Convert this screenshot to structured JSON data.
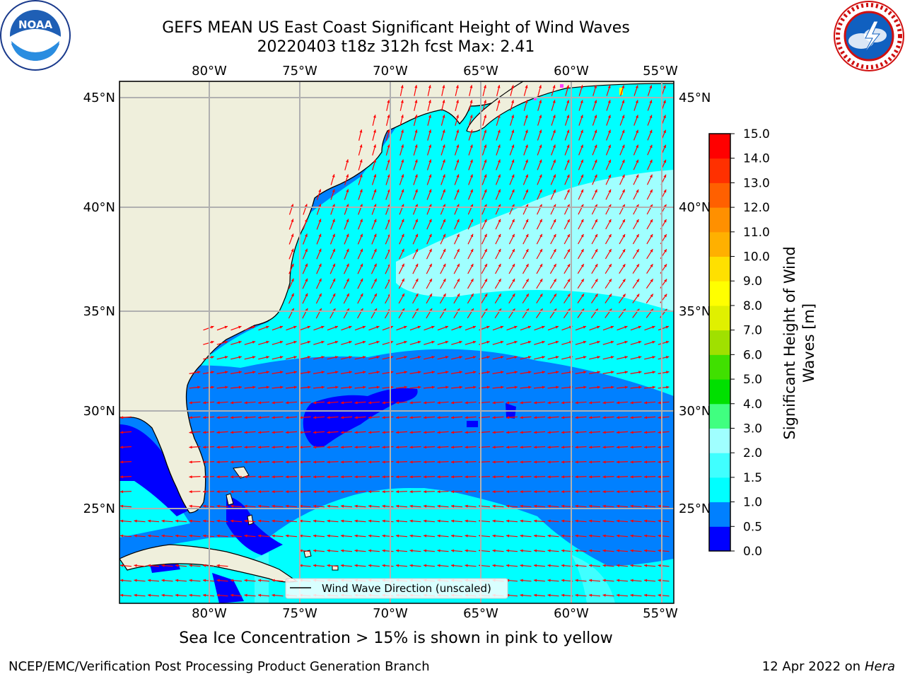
{
  "header": {
    "title_line1": "GEFS MEAN US East Coast Significant Height of Wind Waves",
    "title_line2": "20220403 t18z 312h fcst   Max: 2.41"
  },
  "logos": {
    "noaa": {
      "icon": "noaa-logo-icon",
      "text": "NOAA"
    },
    "nws": {
      "icon": "nws-logo-icon"
    }
  },
  "map": {
    "lon_labels": [
      "80°W",
      "75°W",
      "70°W",
      "65°W",
      "60°W",
      "55°W"
    ],
    "lat_labels": [
      "45°N",
      "40°N",
      "35°N",
      "30°N",
      "25°N"
    ],
    "legend_label": "Wind Wave Direction (unscaled)",
    "colors": {
      "land": "#efefdc",
      "grid": "#b0b0b0",
      "arrow": "#ff0000"
    }
  },
  "colorbar": {
    "label_line1": "Significant Height of Wind",
    "label_line2": "Waves [m]",
    "ticks": [
      "0.0",
      "0.5",
      "1.0",
      "1.5",
      "2.0",
      "3.0",
      "4.0",
      "5.0",
      "6.0",
      "7.0",
      "8.0",
      "9.0",
      "10.0",
      "11.0",
      "12.0",
      "13.0",
      "14.0",
      "15.0"
    ],
    "colors": [
      "#0000ff",
      "#0080ff",
      "#00ffff",
      "#40ffff",
      "#a0ffff",
      "#40ff80",
      "#00e000",
      "#40e000",
      "#a0e000",
      "#e0f000",
      "#ffff00",
      "#ffe000",
      "#ffb000",
      "#ff9000",
      "#ff6000",
      "#ff3000",
      "#ff0000"
    ]
  },
  "footer": {
    "ice_note": "Sea Ice Concentration > 15% is shown in pink to yellow",
    "credit": "NCEP/EMC/Verification Post Processing Product Generation Branch",
    "date_prefix": "12 Apr 2022 on ",
    "date_machine": "Hera"
  }
}
